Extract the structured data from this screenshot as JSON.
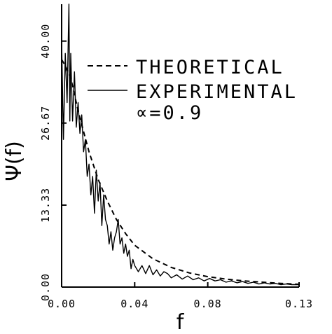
{
  "chart_data": {
    "type": "line",
    "xlabel": "f",
    "ylabel": "Ψ(f)",
    "xlim": [
      0.0,
      0.13
    ],
    "ylim": [
      0.0,
      46.0
    ],
    "x_ticks": [
      0.0,
      0.04,
      0.08,
      0.13
    ],
    "x_tick_labels": [
      "0.00",
      "0.04",
      "0.08",
      "0.13"
    ],
    "y_ticks": [
      0.0,
      13.33,
      26.67,
      40.0
    ],
    "y_tick_labels": [
      "0.00",
      "13.33",
      "26.67",
      "40.00"
    ],
    "annotation": "∝=0.9",
    "legend_position": "top-right",
    "series": [
      {
        "name": "THEORETICAL",
        "style": "dashed",
        "x": [
          0.0,
          0.002,
          0.005,
          0.008,
          0.01,
          0.015,
          0.02,
          0.025,
          0.03,
          0.035,
          0.04,
          0.05,
          0.06,
          0.07,
          0.08,
          0.09,
          0.1,
          0.11,
          0.12,
          0.13
        ],
        "y": [
          37.0,
          36.0,
          34.0,
          30.0,
          27.5,
          22.0,
          17.5,
          14.0,
          11.0,
          8.7,
          6.8,
          4.6,
          3.2,
          2.3,
          1.7,
          1.3,
          1.0,
          0.8,
          0.6,
          0.45
        ]
      },
      {
        "name": "EXPERIMENTAL",
        "style": "solid",
        "x": [
          0.0,
          0.001,
          0.002,
          0.003,
          0.004,
          0.0045,
          0.005,
          0.006,
          0.007,
          0.008,
          0.009,
          0.01,
          0.011,
          0.012,
          0.013,
          0.014,
          0.015,
          0.016,
          0.017,
          0.018,
          0.019,
          0.02,
          0.021,
          0.022,
          0.023,
          0.024,
          0.025,
          0.026,
          0.027,
          0.028,
          0.029,
          0.03,
          0.031,
          0.032,
          0.033,
          0.034,
          0.035,
          0.036,
          0.037,
          0.038,
          0.039,
          0.04,
          0.042,
          0.044,
          0.046,
          0.048,
          0.05,
          0.052,
          0.054,
          0.056,
          0.058,
          0.06,
          0.063,
          0.066,
          0.069,
          0.072,
          0.075,
          0.078,
          0.081,
          0.084,
          0.087,
          0.09,
          0.093,
          0.096,
          0.099,
          0.102,
          0.105,
          0.108,
          0.111,
          0.114,
          0.117,
          0.12,
          0.123,
          0.126,
          0.13
        ],
        "y": [
          40.0,
          24.0,
          38.0,
          30.0,
          46.0,
          27.0,
          38.0,
          27.0,
          35.0,
          26.0,
          30.0,
          25.0,
          28.0,
          22.0,
          24.0,
          18.0,
          20.0,
          15.0,
          18.0,
          12.0,
          19.0,
          14.0,
          17.0,
          10.0,
          15.0,
          11.0,
          10.0,
          7.0,
          9.0,
          6.0,
          8.0,
          9.0,
          11.0,
          7.0,
          8.0,
          5.5,
          7.0,
          5.0,
          6.0,
          3.0,
          4.5,
          3.5,
          2.5,
          3.5,
          2.2,
          3.5,
          2.0,
          2.8,
          1.8,
          2.5,
          2.2,
          1.5,
          2.0,
          1.3,
          1.8,
          1.2,
          1.5,
          1.0,
          1.4,
          1.0,
          1.2,
          0.8,
          1.0,
          0.7,
          0.9,
          0.6,
          0.8,
          0.5,
          0.7,
          0.5,
          0.6,
          0.4,
          0.5,
          0.4,
          0.4
        ]
      }
    ]
  }
}
